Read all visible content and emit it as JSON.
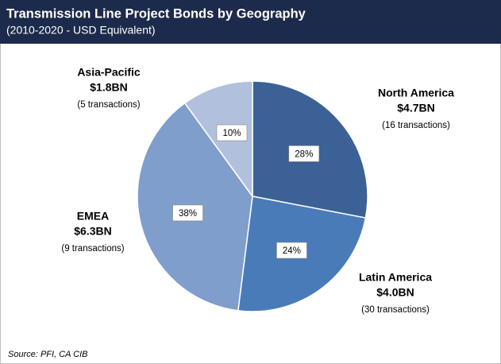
{
  "chart_data": {
    "type": "pie",
    "title": "Transmission Line Project Bonds by Geography",
    "subtitle": "(2010-2020 - USD Equivalent)",
    "categories": [
      "North America",
      "Latin America",
      "EMEA",
      "Asia-Pacific"
    ],
    "values": [
      28,
      24,
      38,
      10
    ],
    "value_labels": [
      "28%",
      "24%",
      "38%",
      "10%"
    ],
    "amount_labels": [
      "$4.7BN",
      "$4.0BN",
      "$6.3BN",
      "$1.8BN"
    ],
    "transaction_labels": [
      "(16 transactions)",
      "(30 transactions)",
      "(9 transactions)",
      "(5 transactions)"
    ],
    "colors": [
      "#3b6196",
      "#4a7bb9",
      "#7f9ecc",
      "#b1c0dd"
    ],
    "source": "Source: PFI, CA CIB"
  }
}
